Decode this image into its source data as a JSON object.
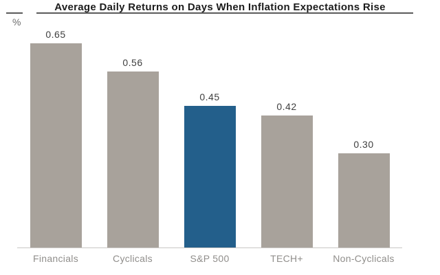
{
  "header": {
    "title": "Average Daily Returns on Days When Inflation Expectations Rise",
    "y_unit_label": "%"
  },
  "chart_data": {
    "type": "bar",
    "title": "Average Daily Returns on Days When Inflation Expectations Rise",
    "categories": [
      "Financials",
      "Cyclicals",
      "S&P 500",
      "TECH+",
      "Non-Cyclicals"
    ],
    "values": [
      0.65,
      0.56,
      0.45,
      0.42,
      0.3
    ],
    "value_labels": [
      "0.65",
      "0.56",
      "0.45",
      "0.42",
      "0.30"
    ],
    "xlabel": "",
    "ylabel": "%",
    "ylim": [
      0,
      0.7
    ],
    "grid": false,
    "legend": "none",
    "bar_colors": [
      "#a8a29b",
      "#a8a29b",
      "#235f8b",
      "#a8a29b",
      "#a8a29b"
    ],
    "highlight_category": "S&P 500",
    "colors": {
      "bar_default": "#a8a29b",
      "bar_highlight": "#235f8b",
      "title_text": "#1c1c1c",
      "title_rule": "#5a5a5a",
      "value_label_text": "#3e3e3e",
      "category_label_text": "#908e8b",
      "baseline": "#c9c7c4",
      "background": "#ffffff"
    }
  }
}
